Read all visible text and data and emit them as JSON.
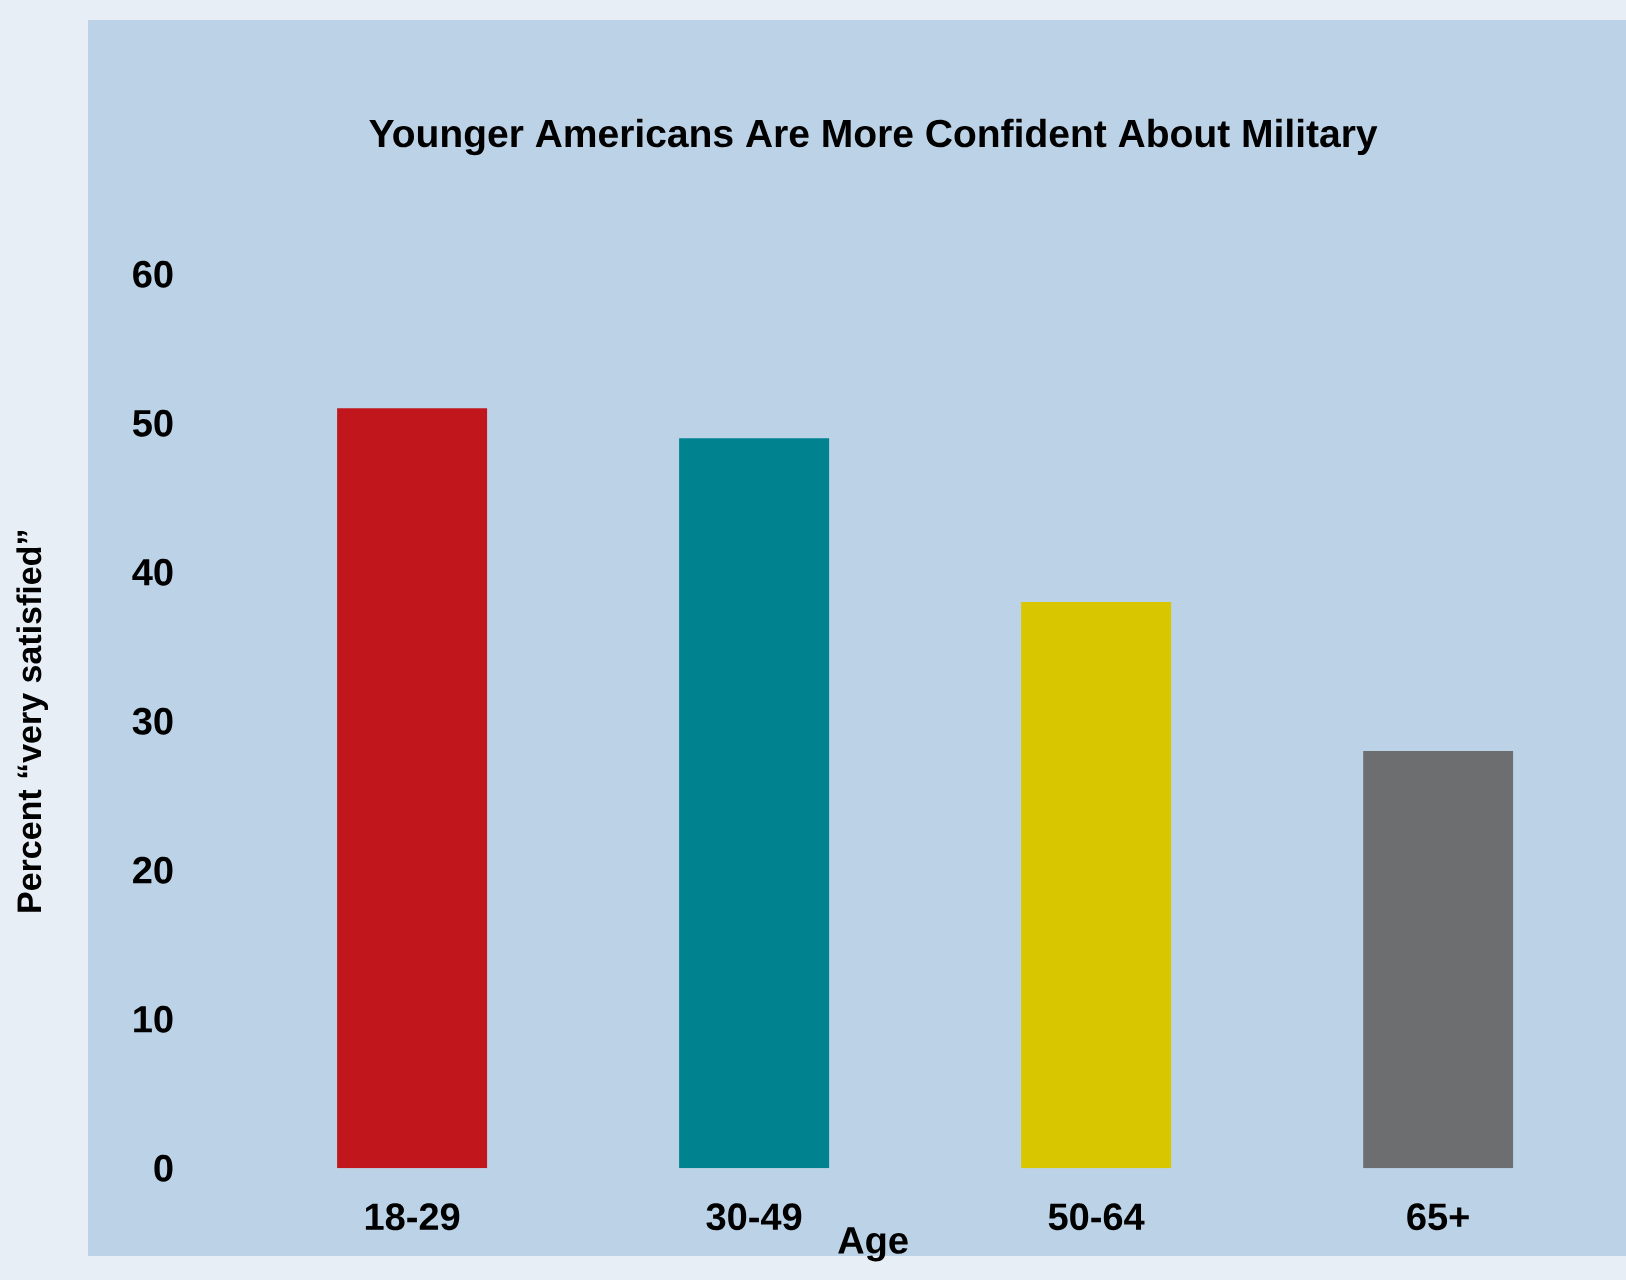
{
  "chart_data": {
    "type": "bar",
    "title": "Younger Americans Are More Confident About Military",
    "xlabel": "Age",
    "ylabel": "Percent “very satisfied”",
    "categories": [
      "18-29",
      "30-49",
      "50-64",
      "65+"
    ],
    "values": [
      51,
      49,
      38,
      28
    ],
    "colors": [
      "#c1161c",
      "#00838f",
      "#d8c700",
      "#6d6e70"
    ],
    "ylim": [
      0,
      60
    ],
    "yticks": [
      0,
      10,
      20,
      30,
      40,
      50,
      60
    ],
    "grid": false
  }
}
